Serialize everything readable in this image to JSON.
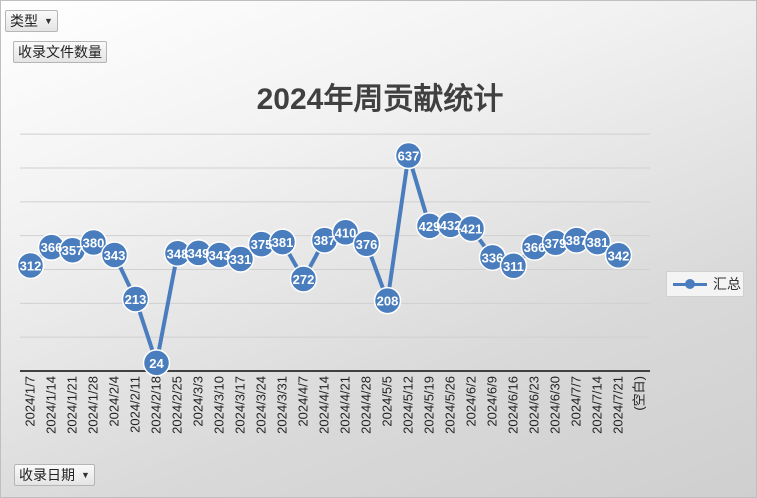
{
  "controls": {
    "type_filter_label": "类型",
    "value_field_label": "收录文件数量",
    "axis_field_label": "收录日期"
  },
  "colors": {
    "series": "#4a7dbd",
    "label_text": "#ffffff",
    "grid": "#d0d0d0"
  },
  "chart_data": {
    "type": "line",
    "title": "2024年周贡献统计",
    "categories": [
      "2024/1/7",
      "2024/1/14",
      "2024/1/21",
      "2024/1/28",
      "2024/2/4",
      "2024/2/11",
      "2024/2/18",
      "2024/2/25",
      "2024/3/3",
      "2024/3/10",
      "2024/3/17",
      "2024/3/24",
      "2024/3/31",
      "2024/4/7",
      "2024/4/14",
      "2024/4/21",
      "2024/4/28",
      "2024/5/5",
      "2024/5/12",
      "2024/5/19",
      "2024/5/26",
      "2024/6/2",
      "2024/6/9",
      "2024/6/16",
      "2024/6/23",
      "2024/6/30",
      "2024/7/7",
      "2024/7/14",
      "2024/7/21",
      "(空白)"
    ],
    "series": [
      {
        "name": "汇总",
        "values": [
          312,
          366,
          357,
          380,
          343,
          213,
          24,
          348,
          349,
          343,
          331,
          375,
          381,
          272,
          387,
          410,
          376,
          208,
          637,
          429,
          432,
          421,
          336,
          311,
          366,
          379,
          387,
          381,
          342,
          null
        ]
      }
    ],
    "ylim": [
      0,
      700
    ],
    "gridlines": true,
    "legend": "right"
  }
}
